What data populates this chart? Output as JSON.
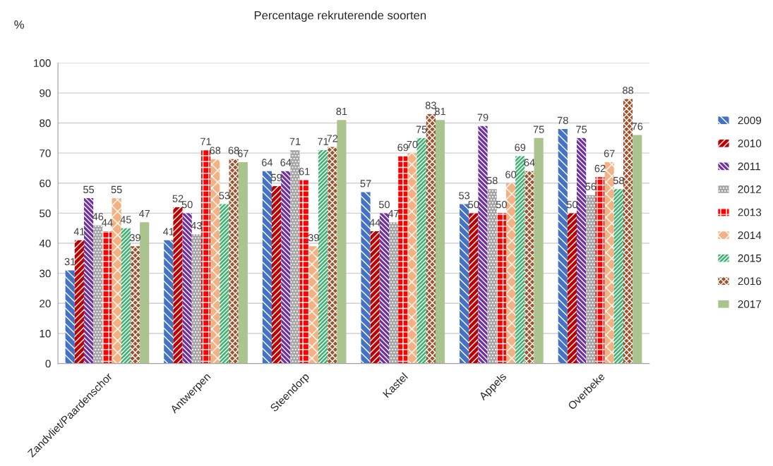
{
  "chart_data": {
    "type": "bar",
    "title": "Percentage rekruterende soorten",
    "ylabel": "%",
    "categories": [
      "Zandvliet/Paardenschor",
      "Antwerpen",
      "Steendorp",
      "Kastel",
      "Appels",
      "Overbeke"
    ],
    "series": [
      {
        "name": "2009",
        "color": "#4472c4",
        "values": [
          31,
          41,
          64,
          57,
          53,
          78
        ]
      },
      {
        "name": "2010",
        "color": "#c00000",
        "values": [
          41,
          52,
          59,
          44,
          50,
          50
        ]
      },
      {
        "name": "2011",
        "color": "#7030a0",
        "values": [
          55,
          50,
          64,
          50,
          79,
          75
        ]
      },
      {
        "name": "2012",
        "color": "#a5a5a5",
        "values": [
          46,
          43,
          71,
          47,
          58,
          56
        ]
      },
      {
        "name": "2013",
        "color": "#ff0000",
        "values": [
          44,
          71,
          61,
          69,
          50,
          62
        ]
      },
      {
        "name": "2014",
        "color": "#f4b183",
        "values": [
          55,
          68,
          39,
          70,
          60,
          67
        ]
      },
      {
        "name": "2015",
        "color": "#3cb371",
        "values": [
          45,
          53,
          71,
          75,
          69,
          58
        ]
      },
      {
        "name": "2016",
        "color": "#a0522d",
        "values": [
          39,
          68,
          72,
          83,
          64,
          88
        ]
      },
      {
        "name": "2017",
        "color": "#a9c48f",
        "values": [
          47,
          67,
          81,
          81,
          75,
          76
        ]
      }
    ],
    "ylim": [
      0,
      100
    ],
    "yticks": [
      0,
      10,
      20,
      30,
      40,
      50,
      60,
      70,
      80,
      90,
      100
    ],
    "grid": "y",
    "legend": "right",
    "data_labels": true
  }
}
